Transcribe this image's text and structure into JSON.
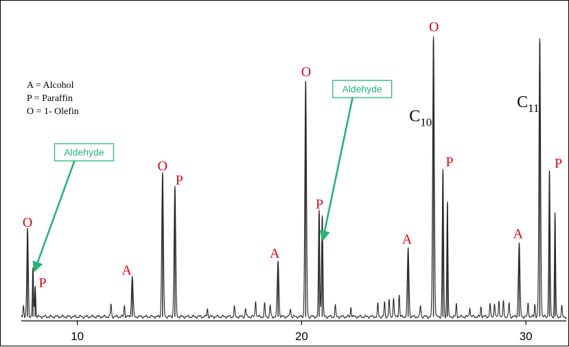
{
  "chart_data": {
    "type": "line",
    "title": "",
    "xlabel": "",
    "ylabel": "",
    "xlim": [
      7.5,
      31.8
    ],
    "ylim": [
      0,
      100
    ],
    "x_ticks": [
      {
        "value": 10,
        "label": "10"
      },
      {
        "value": 20,
        "label": "20"
      },
      {
        "value": 30,
        "label": "30"
      }
    ],
    "grid": false,
    "baseline": 1.5,
    "colors": {
      "trace": "#222222",
      "peak_label": "#e0000f",
      "aldehyde": "#22b573",
      "text": "#000000"
    },
    "legend": [
      {
        "key": "legend-alcohol",
        "text": "A = Alcohol"
      },
      {
        "key": "legend-paraffin",
        "text": "P = Paraffin"
      },
      {
        "key": "legend-olefin",
        "text": "O = 1- Olefin"
      }
    ],
    "peaks": [
      {
        "x": 7.78,
        "y": 31.5,
        "w": 0.045
      },
      {
        "x": 8.02,
        "y": 17.0,
        "w": 0.035
      },
      {
        "x": 8.12,
        "y": 11.0,
        "w": 0.035
      },
      {
        "x": 12.45,
        "y": 14.5,
        "w": 0.05
      },
      {
        "x": 13.8,
        "y": 51.5,
        "w": 0.05
      },
      {
        "x": 14.35,
        "y": 46.5,
        "w": 0.05
      },
      {
        "x": 18.95,
        "y": 20.0,
        "w": 0.05
      },
      {
        "x": 20.18,
        "y": 84.0,
        "w": 0.05
      },
      {
        "x": 20.78,
        "y": 38.0,
        "w": 0.04
      },
      {
        "x": 20.92,
        "y": 36.5,
        "w": 0.04
      },
      {
        "x": 24.75,
        "y": 24.5,
        "w": 0.05
      },
      {
        "x": 25.88,
        "y": 100.0,
        "w": 0.05
      },
      {
        "x": 26.3,
        "y": 52.5,
        "w": 0.04
      },
      {
        "x": 26.5,
        "y": 41.5,
        "w": 0.035
      },
      {
        "x": 29.7,
        "y": 26.5,
        "w": 0.05
      },
      {
        "x": 30.62,
        "y": 99.0,
        "w": 0.05
      },
      {
        "x": 31.05,
        "y": 52.0,
        "w": 0.04
      },
      {
        "x": 31.3,
        "y": 37.0,
        "w": 0.035
      }
    ],
    "minor_peaks": [
      {
        "x": 7.6,
        "y": 4.0
      },
      {
        "x": 11.5,
        "y": 4.5
      },
      {
        "x": 12.1,
        "y": 4.0
      },
      {
        "x": 15.8,
        "y": 2.8
      },
      {
        "x": 17.0,
        "y": 3.5
      },
      {
        "x": 17.5,
        "y": 3.0
      },
      {
        "x": 17.95,
        "y": 6.0
      },
      {
        "x": 18.35,
        "y": 4.5
      },
      {
        "x": 18.6,
        "y": 4.0
      },
      {
        "x": 19.5,
        "y": 3.0
      },
      {
        "x": 21.5,
        "y": 4.0
      },
      {
        "x": 22.2,
        "y": 3.5
      },
      {
        "x": 23.4,
        "y": 4.5
      },
      {
        "x": 23.7,
        "y": 5.0
      },
      {
        "x": 23.9,
        "y": 6.0
      },
      {
        "x": 24.1,
        "y": 7.0
      },
      {
        "x": 24.35,
        "y": 8.0
      },
      {
        "x": 25.3,
        "y": 4.0
      },
      {
        "x": 26.9,
        "y": 4.5
      },
      {
        "x": 27.5,
        "y": 3.5
      },
      {
        "x": 28.0,
        "y": 3.5
      },
      {
        "x": 28.4,
        "y": 4.5
      },
      {
        "x": 28.6,
        "y": 5.0
      },
      {
        "x": 28.8,
        "y": 6.0
      },
      {
        "x": 29.0,
        "y": 5.5
      },
      {
        "x": 29.25,
        "y": 5.0
      },
      {
        "x": 30.1,
        "y": 5.0
      },
      {
        "x": 30.4,
        "y": 4.5
      },
      {
        "x": 31.6,
        "y": 3.5
      }
    ],
    "peak_labels": [
      {
        "text": "O",
        "x": 7.78,
        "y": 33.5
      },
      {
        "text": "P",
        "x": 8.45,
        "y": 12.0
      },
      {
        "text": "A",
        "x": 12.2,
        "y": 16.5
      },
      {
        "text": "O",
        "x": 13.8,
        "y": 53.5
      },
      {
        "text": "P",
        "x": 14.55,
        "y": 48.5
      },
      {
        "text": "A",
        "x": 18.8,
        "y": 22.5
      },
      {
        "text": "O",
        "x": 20.2,
        "y": 87.0
      },
      {
        "text": "P",
        "x": 20.8,
        "y": 40.0
      },
      {
        "text": "A",
        "x": 24.7,
        "y": 27.5
      },
      {
        "text": "O",
        "x": 25.9,
        "y": 103.0
      },
      {
        "text": "P",
        "x": 26.6,
        "y": 55.0
      },
      {
        "text": "A",
        "x": 29.65,
        "y": 29.5
      },
      {
        "text": "P",
        "x": 31.45,
        "y": 54.5
      }
    ],
    "carbon_labels": [
      {
        "key": "c10",
        "base": "C",
        "sub": "10",
        "x": 24.8,
        "y": 71.0
      },
      {
        "key": "c11",
        "base": "C",
        "sub": "11",
        "x": 29.6,
        "y": 76.0
      }
    ],
    "annotations": [
      {
        "key": "aldehyde-left",
        "text": "Aldehyde",
        "x": 10.3,
        "y": 60.0,
        "arrow_to": {
          "x": 8.1,
          "y": 18.0
        }
      },
      {
        "key": "aldehyde-right",
        "text": "Aldehyde",
        "x": 22.7,
        "y": 82.5,
        "arrow_to": {
          "x": 20.95,
          "y": 29.0
        }
      }
    ]
  }
}
